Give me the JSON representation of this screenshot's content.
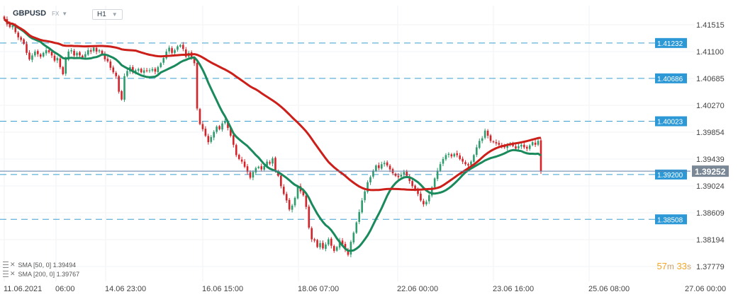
{
  "header": {
    "symbol": "GBPUSD",
    "exchange": "FX",
    "timeframe": "H1"
  },
  "legend": {
    "sma50": "SMA [50, 0] 1.39494",
    "sma200": "SMA [200, 0] 1.39767"
  },
  "countdown": {
    "m_val": "57",
    "m_unit": "m",
    "s_val": "33",
    "s_unit": "s"
  },
  "colors": {
    "sma50": "#1a8a5c",
    "sma200": "#cc1f1a",
    "up": "#2f9c6e",
    "down": "#d6232a",
    "level_line": "#3aa0d0",
    "level_label_bg": "#2c98d6",
    "price_line": "#5f7fa8",
    "current_label_bg": "#7a8796"
  },
  "chart_data": {
    "type": "candlestick",
    "symbol": "GBPUSD",
    "timeframe": "H1",
    "ylim": [
      1.3755,
      1.417
    ],
    "y_ticks": [
      1.41515,
      1.411,
      1.40685,
      1.4027,
      1.39854,
      1.39439,
      1.39024,
      1.38609,
      1.38194,
      1.37779
    ],
    "x_ticks": [
      "11.06.2021",
      "06:00",
      "14.06 23:00",
      "16.06 15:00",
      "18.06 07:00",
      "22.06 00:00",
      "23.06 16:00",
      "25.06 08:00",
      "27.06 00:00"
    ],
    "horizontal_levels": [
      1.41232,
      1.40686,
      1.40023,
      1.392,
      1.38508
    ],
    "current_price": 1.39252,
    "close_series": [
      1.416,
      1.4152,
      1.4148,
      1.415,
      1.414,
      1.4132,
      1.4128,
      1.4122,
      1.4108,
      1.4098,
      1.4104,
      1.411,
      1.4106,
      1.4102,
      1.4108,
      1.4112,
      1.4109,
      1.4104,
      1.4096,
      1.41,
      1.4086,
      1.4075,
      1.4098,
      1.411,
      1.4112,
      1.4104,
      1.4108,
      1.4104,
      1.4101,
      1.4106,
      1.4112,
      1.411,
      1.4116,
      1.411,
      1.4112,
      1.4106,
      1.4098,
      1.4095,
      1.4085,
      1.4078,
      1.4072,
      1.4048,
      1.4036,
      1.4072,
      1.408,
      1.4086,
      1.4078,
      1.4081,
      1.4083,
      1.4078,
      1.4081,
      1.408,
      1.4081,
      1.4083,
      1.4079,
      1.4086,
      1.4092,
      1.41,
      1.411,
      1.4116,
      1.4108,
      1.4112,
      1.4118,
      1.412,
      1.4114,
      1.4102,
      1.4108,
      1.41,
      1.4092,
      1.4022,
      1.3998,
      1.399,
      1.398,
      1.397,
      1.3978,
      1.3986,
      1.3994,
      1.399,
      1.3999,
      1.4002,
      1.3992,
      1.398,
      1.3966,
      1.395,
      1.3944,
      1.394,
      1.3932,
      1.3924,
      1.3915,
      1.3924,
      1.393,
      1.3932,
      1.3928,
      1.3933,
      1.394,
      1.3937,
      1.3945,
      1.3926,
      1.3918,
      1.3902,
      1.389,
      1.388,
      1.3866,
      1.3872,
      1.3884,
      1.3902,
      1.3894,
      1.3888,
      1.387,
      1.3838,
      1.382,
      1.3818,
      1.3808,
      1.3814,
      1.3806,
      1.3812,
      1.382,
      1.381,
      1.3802,
      1.3808,
      1.3818,
      1.3812,
      1.3804,
      1.3796,
      1.3816,
      1.383,
      1.3846,
      1.3862,
      1.388,
      1.3894,
      1.3908,
      1.3916,
      1.3926,
      1.3934,
      1.393,
      1.3936,
      1.3938,
      1.3934,
      1.3928,
      1.3922,
      1.3918,
      1.3916,
      1.392,
      1.3924,
      1.3918,
      1.391,
      1.3902,
      1.3896,
      1.389,
      1.388,
      1.3874,
      1.3878,
      1.3888,
      1.39,
      1.3914,
      1.3926,
      1.3936,
      1.3944,
      1.395,
      1.3952,
      1.3948,
      1.3952,
      1.395,
      1.3944,
      1.394,
      1.3936,
      1.3934,
      1.394,
      1.395,
      1.3962,
      1.3972,
      1.3976,
      1.3988,
      1.398,
      1.3972,
      1.397,
      1.3968,
      1.3966,
      1.3964,
      1.3962,
      1.3966,
      1.3968,
      1.3964,
      1.396,
      1.3964,
      1.3966,
      1.3962,
      1.396,
      1.3965,
      1.397,
      1.3966,
      1.3972,
      1.3925
    ],
    "series": [
      {
        "name": "SMA [50, 0]",
        "last": 1.39494
      },
      {
        "name": "SMA [200, 0]",
        "last": 1.39767
      }
    ]
  }
}
